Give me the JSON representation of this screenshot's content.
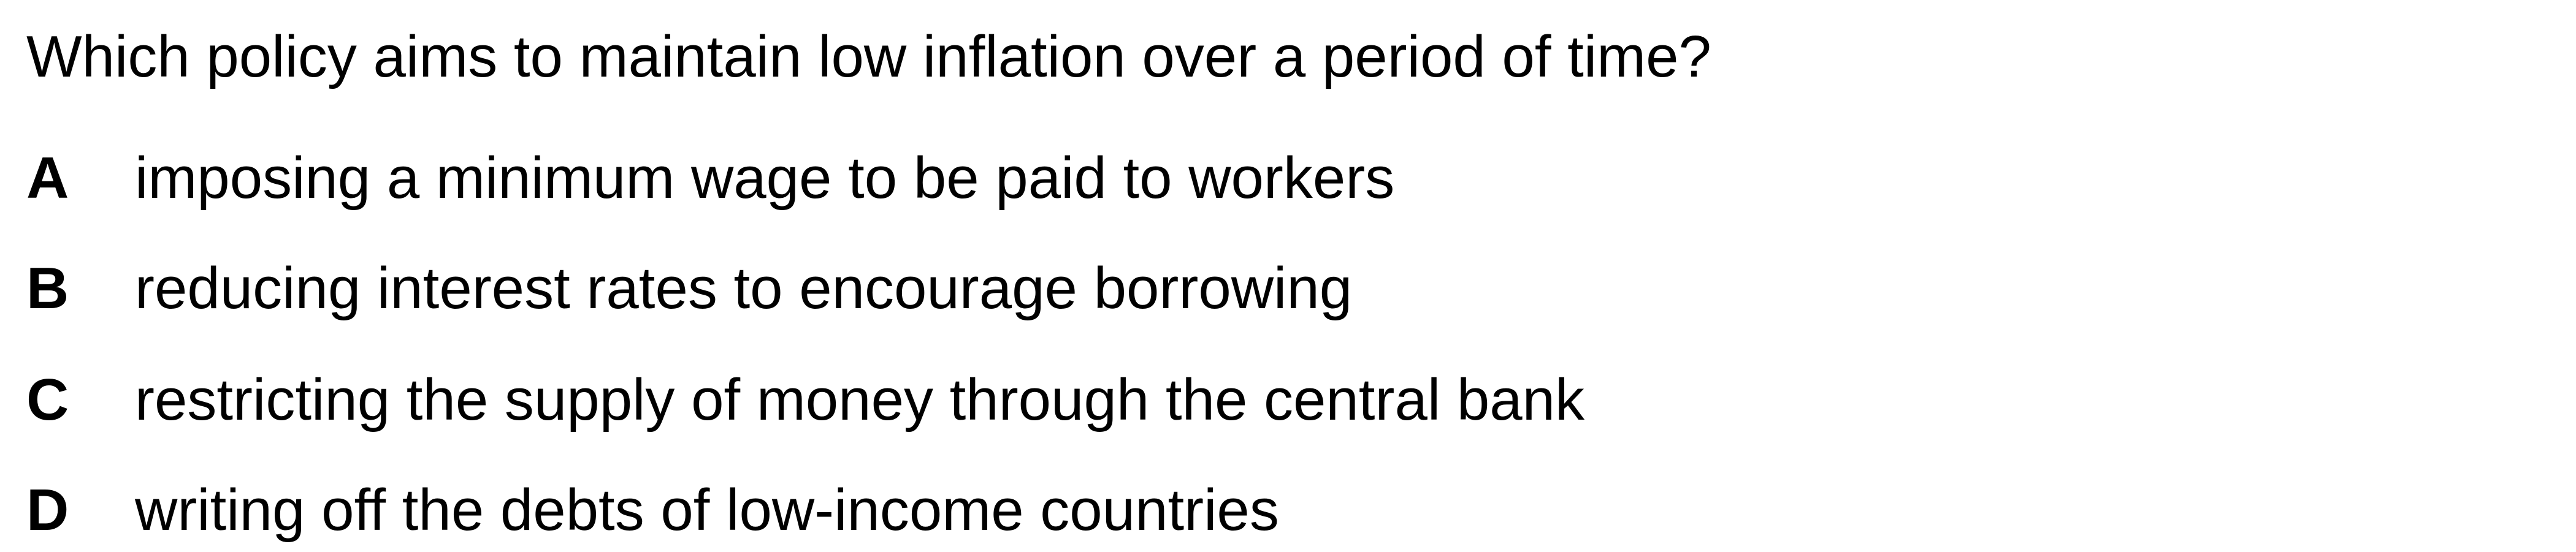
{
  "question": {
    "text": "Which policy aims to maintain low inflation over a period of time?"
  },
  "options": [
    {
      "letter": "A",
      "text": "imposing a minimum wage to be paid to workers"
    },
    {
      "letter": "B",
      "text": "reducing interest rates to encourage borrowing"
    },
    {
      "letter": "C",
      "text": "restricting the supply of money through the central bank"
    },
    {
      "letter": "D",
      "text": "writing off the debts of low-income countries"
    }
  ]
}
